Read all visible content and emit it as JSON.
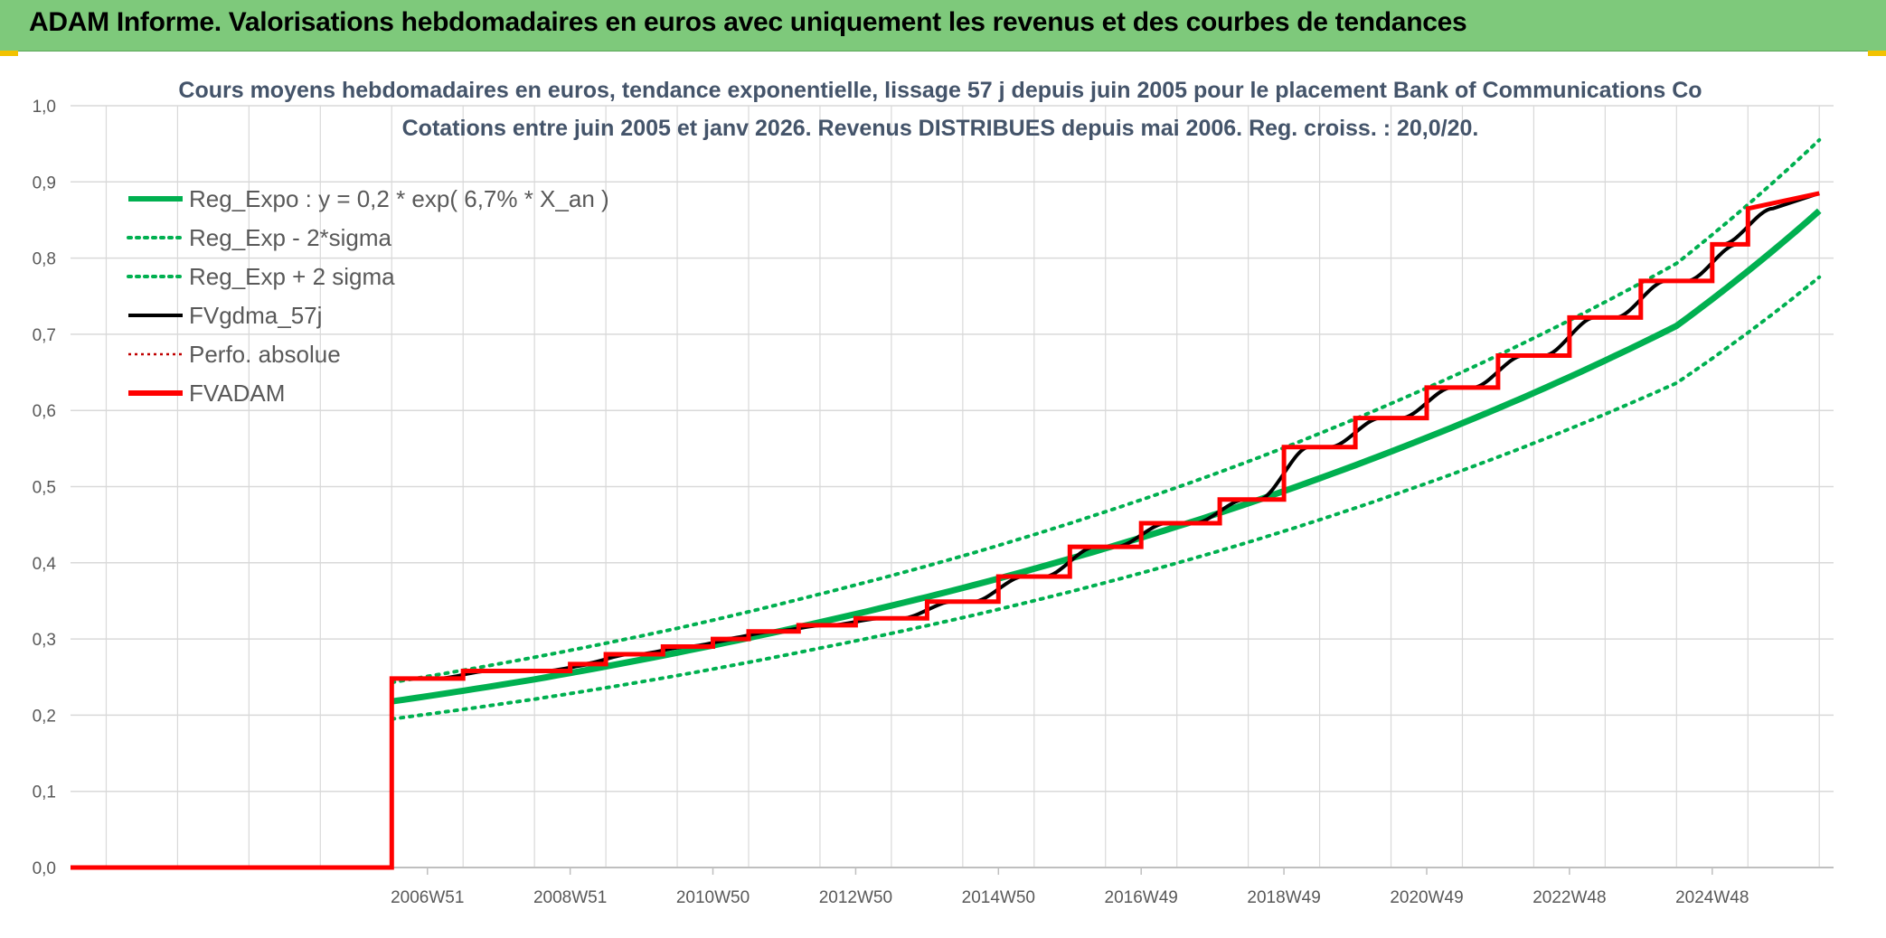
{
  "banner": {
    "title": "ADAM Informe. Valorisations hebdomadaires en euros avec uniquement les revenus et des courbes de tendances"
  },
  "colors": {
    "banner_bg": "#7ec97b",
    "trend_green": "#00b050",
    "fvgdma_black": "#000000",
    "fvadam_red": "#ff0000",
    "grid": "#d9d9d9",
    "title_text": "#44546a"
  },
  "chart_data": {
    "type": "line",
    "title_lines": [
      "Cours moyens hebdomadaires en euros, tendance exponentielle, lissage 57 j depuis juin 2005 pour le placement Bank of Communications Co",
      "Cotations entre juin 2005 et janv 2026. Revenus DISTRIBUES depuis mai 2006. Reg. croiss. : 20,0/20."
    ],
    "xlabel": "",
    "ylabel": "",
    "ylim": [
      0,
      1
    ],
    "xlim": [
      -3.5,
      21.2
    ],
    "y_ticks": [
      "0,0",
      "0,1",
      "0,2",
      "0,3",
      "0,4",
      "0,5",
      "0,6",
      "0,7",
      "0,8",
      "0,9",
      "1,0"
    ],
    "x_ticks": [
      {
        "label": "2006W51",
        "x": 1.5
      },
      {
        "label": "2008W51",
        "x": 3.5
      },
      {
        "label": "2010W50",
        "x": 5.5
      },
      {
        "label": "2012W50",
        "x": 7.5
      },
      {
        "label": "2014W50",
        "x": 9.5
      },
      {
        "label": "2016W49",
        "x": 11.5
      },
      {
        "label": "2018W49",
        "x": 13.5
      },
      {
        "label": "2020W49",
        "x": 15.5
      },
      {
        "label": "2022W48",
        "x": 17.5
      },
      {
        "label": "2024W48",
        "x": 19.5
      }
    ],
    "grid": true,
    "legend_position": "top-left",
    "legend": [
      {
        "name": "Reg_Expo : y = 0,2 * exp( 6,7% *  X_an )",
        "color": "#00b050",
        "style": "solid-thick"
      },
      {
        "name": "Reg_Exp - 2*sigma",
        "color": "#00b050",
        "style": "dotted"
      },
      {
        "name": "Reg_Exp + 2 sigma",
        "color": "#00b050",
        "style": "dotted"
      },
      {
        "name": "FVgdma_57j",
        "color": "#000000",
        "style": "solid"
      },
      {
        "name": "Perfo. absolue",
        "color": "#c00000",
        "style": "dotted-thin"
      },
      {
        "name": "FVADAM",
        "color": "#ff0000",
        "style": "solid-thick"
      }
    ],
    "series": [
      {
        "name": "Reg_Expo : y = 0,2 * exp( 6,7% *  X_an )",
        "x": [
          1.0,
          3.0,
          5.0,
          7.0,
          9.0,
          11.0,
          13.0,
          15.0,
          17.0,
          19.0,
          21.0
        ],
        "values": [
          0.218,
          0.247,
          0.282,
          0.322,
          0.367,
          0.419,
          0.478,
          0.546,
          0.623,
          0.711,
          0.862
        ]
      },
      {
        "name": "Reg_Exp - 2*sigma",
        "x": [
          1.0,
          3.0,
          5.0,
          7.0,
          9.0,
          11.0,
          13.0,
          15.0,
          17.0,
          19.0,
          21.0
        ],
        "values": [
          0.195,
          0.221,
          0.252,
          0.288,
          0.328,
          0.374,
          0.427,
          0.488,
          0.557,
          0.636,
          0.775
        ]
      },
      {
        "name": "Reg_Exp + 2 sigma",
        "x": [
          1.0,
          3.0,
          5.0,
          7.0,
          9.0,
          11.0,
          13.0,
          15.0,
          17.0,
          19.0,
          21.0
        ],
        "values": [
          0.243,
          0.276,
          0.314,
          0.359,
          0.409,
          0.467,
          0.533,
          0.609,
          0.695,
          0.793,
          0.955
        ]
      },
      {
        "name": "FVADAM",
        "x": [
          -3.5,
          1.0,
          1.0,
          2.0,
          2.0,
          3.5,
          3.5,
          4.0,
          4.0,
          4.8,
          4.8,
          5.5,
          5.5,
          6.0,
          6.0,
          6.7,
          6.7,
          7.5,
          7.5,
          8.5,
          8.5,
          9.5,
          9.5,
          10.5,
          10.5,
          11.5,
          11.5,
          12.6,
          12.6,
          13.5,
          13.5,
          14.5,
          14.5,
          15.5,
          15.5,
          16.5,
          16.5,
          17.5,
          17.5,
          18.5,
          18.5,
          19.5,
          19.5,
          20.0,
          20.0,
          21.0
        ],
        "values": [
          0.0,
          0.0,
          0.248,
          0.248,
          0.258,
          0.258,
          0.267,
          0.267,
          0.28,
          0.28,
          0.29,
          0.29,
          0.3,
          0.3,
          0.31,
          0.31,
          0.318,
          0.318,
          0.327,
          0.327,
          0.349,
          0.349,
          0.382,
          0.382,
          0.421,
          0.421,
          0.452,
          0.452,
          0.483,
          0.483,
          0.552,
          0.552,
          0.59,
          0.59,
          0.63,
          0.63,
          0.672,
          0.672,
          0.722,
          0.722,
          0.77,
          0.77,
          0.818,
          0.818,
          0.865,
          0.885
        ]
      }
    ]
  }
}
